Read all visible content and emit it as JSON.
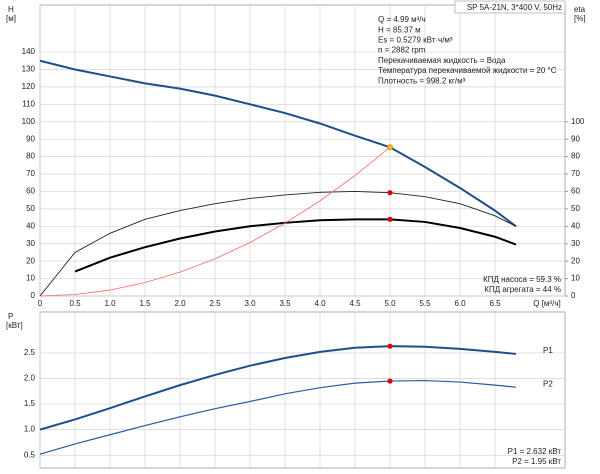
{
  "chart_data": [
    {
      "type": "line",
      "title": "SP 5A-21N, 3*400 V, 50Hz",
      "ylabel": "H",
      "yunit": "[м]",
      "y2label": "eta",
      "y2unit": "[%]",
      "xlabel": "Q [м³/ч]",
      "annotations": [
        "Q = 4.99 м³/ч",
        "H = 85.37 м",
        "Es = 0.5279 кВт·ч/м³",
        "n = 2882 rpm",
        "Перекачиваемая жидкость = Вода",
        "Температура перекачиваемой жидкости = 20 °C",
        "Плотность = 998.2 кг/м³"
      ],
      "notes": [
        "КПД насоса = 59.3 %",
        "КПД агрегата = 44 %"
      ],
      "x": [
        0,
        0.5,
        1,
        1.5,
        2,
        2.5,
        3,
        3.5,
        4,
        4.5,
        5,
        5.5,
        6,
        6.5,
        6.8
      ],
      "series": [
        {
          "color": "#1f4e8c",
          "values": [
            135,
            130,
            126,
            122,
            119,
            115,
            110,
            105,
            99,
            92,
            85.37,
            74,
            62,
            49,
            40
          ]
        },
        {
          "color": "#222222",
          "axis": "y2",
          "values": [
            0,
            25,
            36,
            44,
            49,
            53,
            56,
            58,
            59.5,
            60,
            59.3,
            57,
            53,
            46,
            40
          ]
        },
        {
          "color": "#000000",
          "axis": "y2",
          "values": [
            null,
            14,
            22,
            28,
            33,
            37,
            40,
            42,
            43.5,
            44,
            44,
            42.5,
            39,
            34,
            29.5
          ]
        },
        {
          "color": "#ff6666",
          "values": [
            0,
            0.85,
            3.4,
            7.7,
            13.7,
            21.3,
            30.7,
            41.8,
            54.6,
            69.1,
            85.37,
            null,
            null,
            null,
            null
          ]
        }
      ],
      "points": [
        {
          "x": 5,
          "y": 85.37,
          "color": "#ffc000"
        },
        {
          "x": 5,
          "y": 59.3,
          "axis": "y2",
          "color": "#e00000"
        },
        {
          "x": 5,
          "y": 44,
          "axis": "y2",
          "color": "#e00000"
        }
      ],
      "xlim": [
        0,
        7.5
      ],
      "ylim": [
        0,
        167
      ],
      "y2lim": [
        0,
        167
      ],
      "xtick_labels": true,
      "xticks": [
        0,
        0.5,
        {
          "value": 1,
          "label": "1.0"
        },
        1.5,
        {
          "value": 2,
          "label": "2.0"
        },
        2.5,
        {
          "value": 3,
          "label": "3.0"
        },
        3.5,
        {
          "value": 4,
          "label": "4.0"
        },
        4.5,
        {
          "value": 5,
          "label": "5.0"
        },
        5.5,
        {
          "value": 6,
          "label": "6.0"
        },
        6.5
      ],
      "yticks": [
        0,
        10,
        20,
        30,
        40,
        50,
        60,
        70,
        80,
        90,
        100,
        110,
        120,
        130,
        140
      ],
      "y2ticks": [
        0,
        10,
        20,
        30,
        40,
        50,
        60,
        70,
        80,
        90,
        100
      ],
      "grid": true
    },
    {
      "type": "line",
      "ylabel": "P",
      "yunit": "[кВт]",
      "notes": [
        "P1 = 2.632 кВт",
        "P2 = 1.95 кВт"
      ],
      "x": [
        0,
        0.5,
        1,
        1.5,
        2,
        2.5,
        3,
        3.5,
        4,
        4.5,
        5,
        5.5,
        6,
        6.5,
        6.8
      ],
      "series": [
        {
          "name": "P1",
          "color": "#1f4e8c",
          "values": [
            1.0,
            1.2,
            1.42,
            1.65,
            1.87,
            2.07,
            2.25,
            2.4,
            2.52,
            2.6,
            2.632,
            2.62,
            2.58,
            2.52,
            2.48
          ]
        },
        {
          "name": "P2",
          "color": "#2a5aa0",
          "values": [
            0.52,
            0.72,
            0.9,
            1.08,
            1.25,
            1.41,
            1.55,
            1.7,
            1.82,
            1.91,
            1.95,
            1.96,
            1.93,
            1.87,
            1.83
          ]
        }
      ],
      "points": [
        {
          "x": 5,
          "y": 2.632,
          "color": "#e00000"
        },
        {
          "x": 5,
          "y": 1.95,
          "color": "#e00000"
        }
      ],
      "xlim": [
        0,
        7.5
      ],
      "ylim": [
        0.25,
        3.3
      ],
      "xtick_labels": false,
      "xticks": [
        0,
        0.5,
        1,
        1.5,
        2,
        2.5,
        3,
        3.5,
        4,
        4.5,
        5,
        5.5,
        6,
        6.5
      ],
      "yticks": [
        0.5,
        {
          "value": 1,
          "label": "1.0"
        },
        1.5,
        {
          "value": 2,
          "label": "2.0"
        },
        2.5
      ],
      "grid": true
    }
  ]
}
